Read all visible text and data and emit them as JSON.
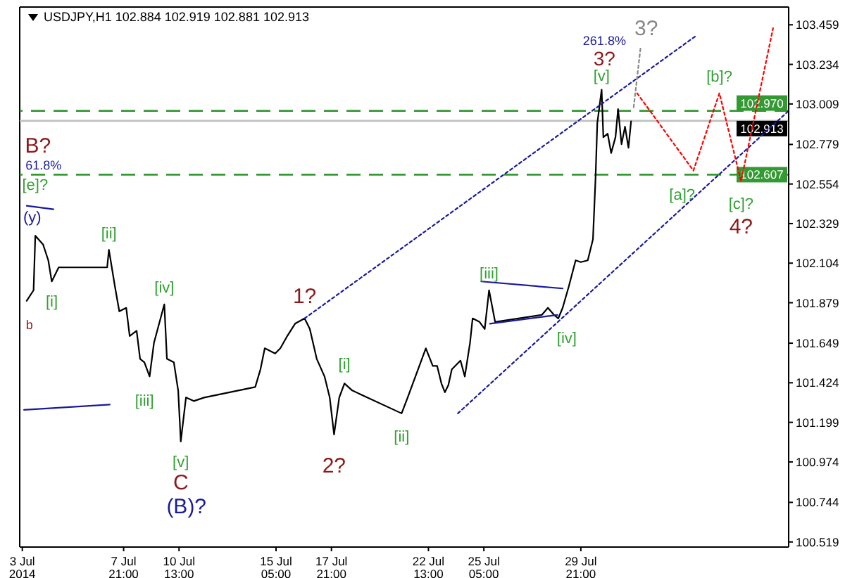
{
  "chart_data": {
    "type": "line",
    "title": "USDJPY,H1  102.884 102.919 102.881 102.913",
    "xlim": [
      "2014-07-02T21:00",
      "2014-08-08T21:00"
    ],
    "xticks": [
      {
        "value": "2014-07-03",
        "label": "3 Jul 2014"
      },
      {
        "value": "2014-07-07T21:00",
        "label": "7 Jul 21:00"
      },
      {
        "value": "2014-07-10T13:00",
        "label": "10 Jul 13:00"
      },
      {
        "value": "2014-07-15T05:00",
        "label": "15 Jul 05:00"
      },
      {
        "value": "2014-07-17T21:00",
        "label": "17 Jul 21:00"
      },
      {
        "value": "2014-07-22T13:00",
        "label": "22 Jul 13:00"
      },
      {
        "value": "2014-07-25T05:00",
        "label": "25 Jul 05:00"
      },
      {
        "value": "2014-07-29T21:00",
        "label": "29 Jul 21:00"
      }
    ],
    "ylim": [
      100.49,
      103.56
    ],
    "yticks": [
      100.519,
      100.744,
      100.974,
      101.199,
      101.424,
      101.649,
      101.879,
      102.104,
      102.329,
      102.554,
      102.779,
      103.009,
      103.234,
      103.459
    ],
    "grid": false,
    "marker": "none",
    "line_style": "solid",
    "series": [
      {
        "color": "#000000",
        "x": [
          "2014-07-03T05:00",
          "2014-07-03T13:00",
          "2014-07-03T15:00",
          "2014-07-04T00:00",
          "2014-07-04T06:00",
          "2014-07-04T10:00",
          "2014-07-04T18:00",
          "2014-07-07T02:00",
          "2014-07-07T04:00",
          "2014-07-07T11:00",
          "2014-07-07T16:00",
          "2014-07-08T00:00",
          "2014-07-08T04:00",
          "2014-07-08T12:00",
          "2014-07-08T16:00",
          "2014-07-08T21:00",
          "2014-07-09T03:00",
          "2014-07-09T08:00",
          "2014-07-09T20:00",
          "2014-07-09T23:00",
          "2014-07-10T07:00",
          "2014-07-10T12:00",
          "2014-07-10T15:00",
          "2014-07-10T21:00",
          "2014-07-11T06:00",
          "2014-07-11T18:00",
          "2014-07-14T05:00",
          "2014-07-14T11:00",
          "2014-07-14T16:00",
          "2014-07-15T04:00",
          "2014-07-15T10:00",
          "2014-07-15T18:00",
          "2014-07-16T03:00",
          "2014-07-16T14:00",
          "2014-07-16T20:00",
          "2014-07-17T04:00",
          "2014-07-17T13:00",
          "2014-07-17T19:00",
          "2014-07-18T00:00",
          "2014-07-18T06:00",
          "2014-07-18T12:00",
          "2014-07-18T21:00",
          "2014-07-21T06:00",
          "2014-07-21T13:00",
          "2014-07-21T22:00",
          "2014-07-22T10:00",
          "2014-07-22T18:00",
          "2014-07-22T23:00",
          "2014-07-23T04:00",
          "2014-07-23T08:00",
          "2014-07-23T12:00",
          "2014-07-23T16:00",
          "2014-07-24T02:00",
          "2014-07-24T07:00",
          "2014-07-24T13:00",
          "2014-07-24T16:00",
          "2014-07-25T00:00",
          "2014-07-25T06:00",
          "2014-07-25T11:00",
          "2014-07-25T18:00",
          "2014-07-28T00:00",
          "2014-07-28T07:00",
          "2014-07-28T14:00",
          "2014-07-28T19:00",
          "2014-07-29T00:00",
          "2014-07-29T07:00",
          "2014-07-29T15:00",
          "2014-07-29T21:00",
          "2014-07-30T05:00",
          "2014-07-30T11:00",
          "2014-07-30T14:00",
          "2014-07-30T16:00",
          "2014-07-30T21:00",
          "2014-07-30T23:00",
          "2014-07-31T04:00",
          "2014-07-31T08:00",
          "2014-07-31T13:00",
          "2014-07-31T16:00",
          "2014-07-31T20:00",
          "2014-08-01T00:00",
          "2014-08-01T04:00",
          "2014-08-01T07:00"
        ],
        "values": [
          101.89,
          101.95,
          102.26,
          102.21,
          102.12,
          102.0,
          102.08,
          102.08,
          102.18,
          101.97,
          101.83,
          101.85,
          101.69,
          101.72,
          101.56,
          101.54,
          101.46,
          101.65,
          101.87,
          101.56,
          101.54,
          101.38,
          101.09,
          101.34,
          101.32,
          101.34,
          101.4,
          101.5,
          101.62,
          101.59,
          101.62,
          101.69,
          101.76,
          101.79,
          101.73,
          101.56,
          101.46,
          101.34,
          101.13,
          101.34,
          101.42,
          101.38,
          101.25,
          101.34,
          101.46,
          101.62,
          101.52,
          101.52,
          101.42,
          101.37,
          101.41,
          101.5,
          101.55,
          101.46,
          101.65,
          101.79,
          101.77,
          101.73,
          101.95,
          101.77,
          101.81,
          101.85,
          101.81,
          101.79,
          101.85,
          101.97,
          102.12,
          102.11,
          102.12,
          102.24,
          102.59,
          102.9,
          103.09,
          102.82,
          102.84,
          102.73,
          102.82,
          102.98,
          102.78,
          102.88,
          102.76,
          102.91
        ]
      },
      {
        "color": "#1a1a9a",
        "line_style": "dotted",
        "x": [
          "2014-07-16T14:00",
          "2014-08-04T11:00"
        ],
        "values": [
          101.79,
          103.4
        ]
      },
      {
        "color": "#1a1a9a",
        "line_style": "dotted",
        "x": [
          "2014-07-23T23:00",
          "2014-08-08T21:00"
        ],
        "values": [
          101.25,
          102.97
        ]
      },
      {
        "color": "#ff0000",
        "line_style": "dotted",
        "x": [
          "2014-08-01T14:00",
          "2014-08-04T07:00",
          "2014-08-05T13:00",
          "2014-08-06T14:00",
          "2014-08-08T03:00"
        ],
        "values": [
          103.07,
          102.63,
          103.07,
          102.57,
          103.44
        ]
      },
      {
        "color": "#888888",
        "line_style": "dotted",
        "x": [
          "2014-08-01T10:00",
          "2014-08-01T18:00"
        ],
        "values": [
          102.99,
          103.33
        ]
      },
      {
        "color": "#1a1a9a",
        "x": [
          "2014-07-03T05:00",
          "2014-07-04T12:00"
        ],
        "values": [
          102.43,
          102.41
        ]
      },
      {
        "color": "#1a1a9a",
        "x": [
          "2014-07-03T02:00",
          "2014-07-07T05:00"
        ],
        "values": [
          101.27,
          101.3
        ]
      },
      {
        "color": "#1a1a9a",
        "x": [
          "2014-07-25T02:00",
          "2014-07-29T00:00"
        ],
        "values": [
          102.0,
          101.96
        ]
      },
      {
        "color": "#1a1a9a",
        "x": [
          "2014-07-25T12:00",
          "2014-07-28T18:00"
        ],
        "values": [
          101.76,
          101.81
        ]
      }
    ],
    "ref_lines": [
      {
        "axis": "y",
        "value": 102.97,
        "label": "102.970",
        "color": "#339933",
        "line_style": "dashed"
      },
      {
        "axis": "y",
        "value": 102.607,
        "label": "102.607",
        "color": "#339933",
        "line_style": "dashed"
      },
      {
        "axis": "y",
        "value": 102.913,
        "label": "102.913",
        "color": "#c0c0c0",
        "line_style": "solid"
      }
    ],
    "annotations": [
      {
        "text": "B?",
        "x": "2014-07-03T05:00",
        "y": 102.43
      },
      {
        "text": "61.8%",
        "x": "2014-07-03T05:00",
        "y": 102.43
      },
      {
        "text": "[e]?",
        "x": "2014-07-03T05:00",
        "y": 102.43
      },
      {
        "text": "(y)",
        "x": "2014-07-03T05:00",
        "y": 102.43
      },
      {
        "text": "b",
        "x": "2014-07-03T05:00",
        "y": 101.89
      },
      {
        "text": "[i]",
        "x": "2014-07-04T10:00",
        "y": 102.0
      },
      {
        "text": "[ii]",
        "x": "2014-07-07T04:00",
        "y": 102.18
      },
      {
        "text": "[iii]",
        "x": "2014-07-08T21:00",
        "y": 101.46
      },
      {
        "text": "[iv]",
        "x": "2014-07-09T20:00",
        "y": 101.87
      },
      {
        "text": "[v]",
        "x": "2014-07-10T15:00",
        "y": 101.09
      },
      {
        "text": "C",
        "x": "2014-07-10T15:00",
        "y": 101.09
      },
      {
        "text": "(B)?",
        "x": "2014-07-10T15:00",
        "y": 101.09
      },
      {
        "text": "1?",
        "x": "2014-07-16T14:00",
        "y": 101.79
      },
      {
        "text": "[i]",
        "x": "2014-07-18T12:00",
        "y": 101.42
      },
      {
        "text": "2?",
        "x": "2014-07-18T00:00",
        "y": 101.13
      },
      {
        "text": "[ii]",
        "x": "2014-07-21T06:00",
        "y": 101.25
      },
      {
        "text": "[iii]",
        "x": "2014-07-25T11:00",
        "y": 101.95
      },
      {
        "text": "[iv]",
        "x": "2014-07-28T19:00",
        "y": 101.79
      },
      {
        "text": "[v]",
        "x": "2014-07-30T21:00",
        "y": 103.09
      },
      {
        "text": "3?",
        "x": "2014-07-30T21:00",
        "y": 103.09
      },
      "261.8%",
      {
        "text": "3?",
        "x": "2014-08-01T18:00",
        "y": 103.33
      },
      {
        "text": "[a]?",
        "x": "2014-08-04T07:00",
        "y": 102.63
      },
      {
        "text": "[b]?",
        "x": "2014-08-05T13:00",
        "y": 103.07
      },
      {
        "text": "[c]?",
        "x": "2014-08-06T14:00",
        "y": 102.57
      },
      {
        "text": "4?",
        "x": "2014-08-06T14:00",
        "y": 102.57
      }
    ]
  }
}
